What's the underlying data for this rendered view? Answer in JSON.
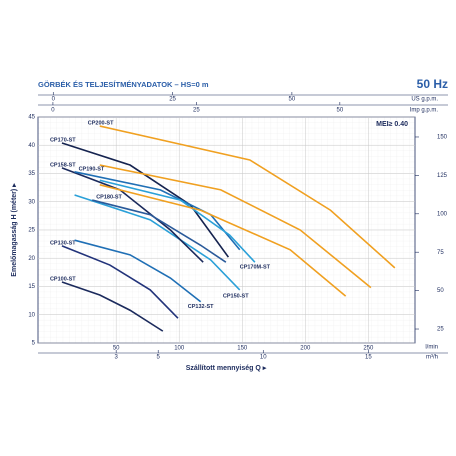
{
  "chart_data": {
    "type": "line",
    "title": "GÖRBÉK ÉS TELJESÍTMÉNYADATOK  –  HS=0 m",
    "frequency": "50 Hz",
    "annotation": "MEI≥ 0.40",
    "xlabel": "Szállított mennyiség  Q  ▸",
    "xlabel_unit": "l/min",
    "ylabel": "Emelőmagasság  H  (méter)  ▸",
    "xlim": [
      -12,
      287
    ],
    "xticks": [
      50,
      100,
      150,
      200,
      250
    ],
    "ylim": [
      5,
      45
    ],
    "yticks": [
      5,
      10,
      15,
      20,
      25,
      30,
      35,
      40,
      45
    ],
    "y2lim": [
      15.9,
      163
    ],
    "y2ticks": [
      25,
      50,
      75,
      100,
      125,
      150
    ],
    "grid": true,
    "m3h_axis": {
      "label": "m³/h",
      "xlim": [
        -0.72,
        17.22
      ],
      "xticks": [
        3,
        5,
        10,
        15
      ]
    },
    "us_gpm_axis": {
      "label": "US g.p.m.",
      "xlim": [
        -3.2,
        75.8
      ],
      "xticks": [
        0,
        25,
        50
      ]
    },
    "imp_gpm_axis": {
      "label": "Imp g.p.m.",
      "xlim": [
        -2.6,
        63.1
      ],
      "xticks": [
        0,
        25,
        50
      ]
    },
    "series": [
      {
        "name": "CP100-ST",
        "color": "#1b2a5c",
        "x": [
          7,
          37,
          61,
          87
        ],
        "values": [
          15.8,
          13.5,
          10.8,
          7.1
        ]
      },
      {
        "name": "CP130-ST",
        "color": "#22337a",
        "x": [
          7,
          45,
          77,
          99
        ],
        "values": [
          22.2,
          18.8,
          14.4,
          9.4
        ]
      },
      {
        "name": "CP132-ST",
        "color": "#1f6fb5",
        "x": [
          17,
          61,
          93,
          117
        ],
        "values": [
          23.2,
          20.6,
          16.5,
          12.3
        ]
      },
      {
        "name": "CP150-ST",
        "color": "#2aa0d8",
        "x": [
          17,
          77,
          125,
          148
        ],
        "values": [
          31.2,
          26.8,
          19.7,
          14.4
        ]
      },
      {
        "name": "CP158-ST",
        "color": "#1b2a5c",
        "x": [
          7,
          53,
          93,
          119
        ],
        "values": [
          36,
          32.1,
          25,
          19.3
        ]
      },
      {
        "name": "CP170-ST",
        "color": "#15234f",
        "x": [
          7,
          61,
          109,
          139
        ],
        "values": [
          40.4,
          36.5,
          29.4,
          20.2
        ]
      },
      {
        "name": "CP190-ST",
        "color": "#1f6fb5",
        "x": [
          17,
          85,
          125,
          148
        ],
        "values": [
          35.3,
          32.1,
          27.7,
          21.5
        ]
      },
      {
        "name": "CP180-ST",
        "color": "#2a5a9a",
        "x": [
          31,
          77,
          117,
          137
        ],
        "values": [
          30.3,
          27.7,
          22.3,
          19.3
        ]
      },
      {
        "name": "CP170M-ST",
        "color": "#2aa0d8",
        "x": [
          37,
          101,
          140,
          160
        ],
        "values": [
          33.8,
          30.3,
          24.1,
          19.3
        ]
      },
      {
        "name": "CP200-ST",
        "color": "#f0a020",
        "x": [
          37,
          156,
          220,
          271
        ],
        "values": [
          43.4,
          37.4,
          28.5,
          18.3
        ]
      },
      {
        "color": "#f0a020",
        "x": [
          37,
          133,
          196,
          252
        ],
        "values": [
          36.5,
          32.1,
          25,
          14.8
        ]
      },
      {
        "color": "#f0a020",
        "x": [
          37,
          117,
          188,
          232
        ],
        "values": [
          33,
          28.5,
          21.5,
          13.3
        ]
      }
    ]
  }
}
